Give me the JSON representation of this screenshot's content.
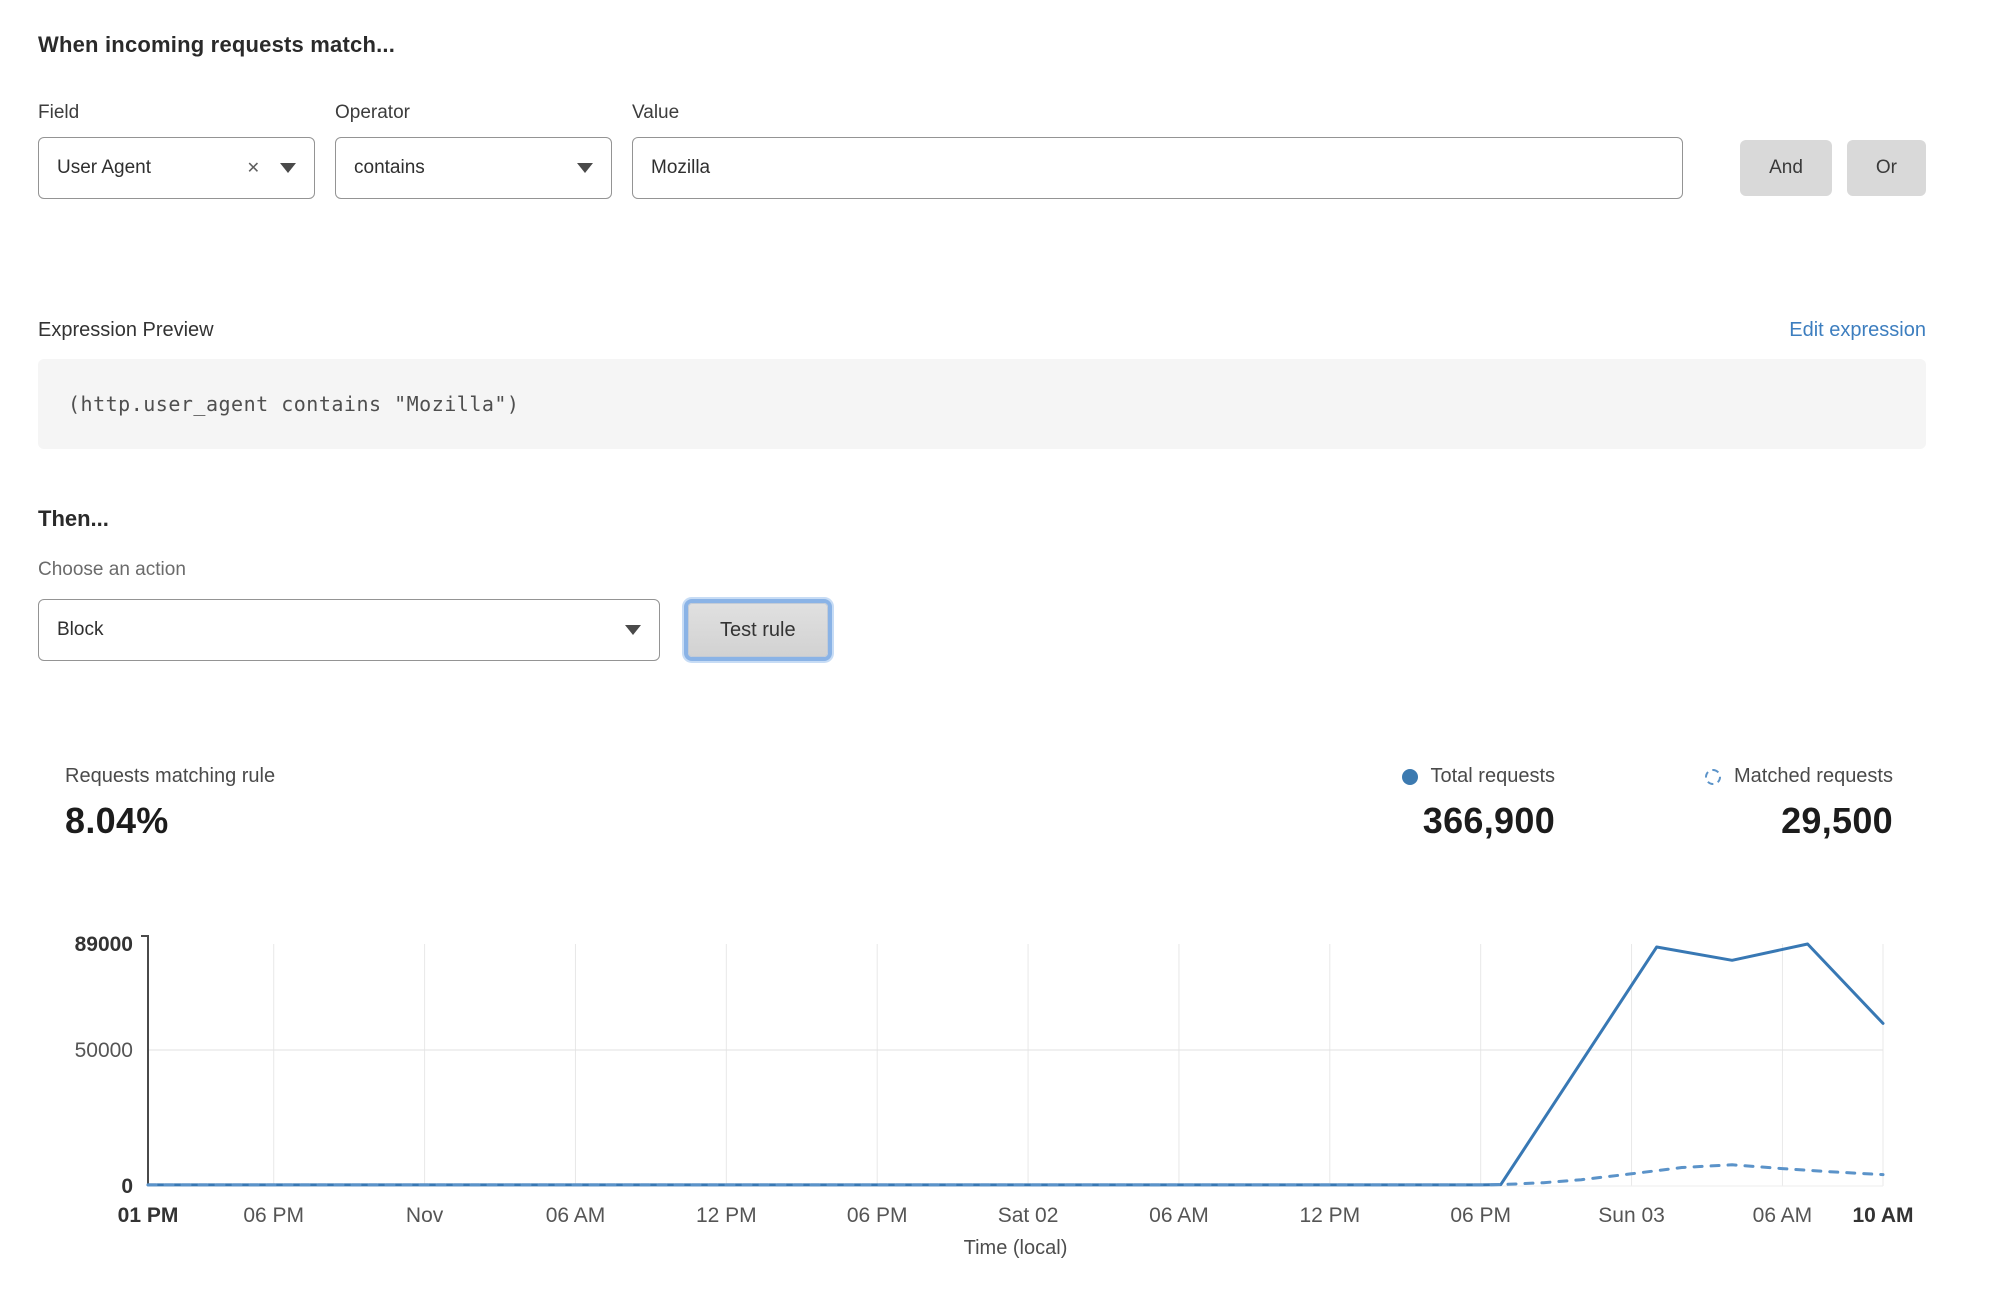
{
  "header": {
    "title": "When incoming requests match..."
  },
  "rule_builder": {
    "field": {
      "label": "Field",
      "value": "User Agent"
    },
    "operator": {
      "label": "Operator",
      "value": "contains"
    },
    "value": {
      "label": "Value",
      "value": "Mozilla"
    },
    "and_label": "And",
    "or_label": "Or"
  },
  "expression": {
    "label": "Expression Preview",
    "edit_link": "Edit expression",
    "code": "(http.user_agent contains \"Mozilla\")"
  },
  "action": {
    "heading": "Then...",
    "label": "Choose an action",
    "value": "Block",
    "test_button": "Test rule"
  },
  "stats": {
    "matching": {
      "label": "Requests matching rule",
      "value": "8.04%"
    },
    "total": {
      "label": "Total requests",
      "value": "366,900"
    },
    "matched": {
      "label": "Matched requests",
      "value": "29,500"
    }
  },
  "colors": {
    "line_solid": "#3878b4",
    "line_dashed": "#5b93c9",
    "link_blue": "#3d7ebf",
    "button_grey": "#d9d9d9"
  },
  "chart_data": {
    "type": "line",
    "title": "",
    "xlabel": "Time (local)",
    "ylabel": "",
    "ylim": [
      0,
      89000
    ],
    "x_range_hours": [
      0,
      69
    ],
    "grid": true,
    "legend_position": "above-right",
    "yticks": [
      {
        "value": 0,
        "label": "0",
        "bold": true
      },
      {
        "value": 50000,
        "label": "50000",
        "bold": false
      },
      {
        "value": 89000,
        "label": "89000",
        "bold": true
      }
    ],
    "xticks": [
      {
        "hour": 0,
        "label": "01 PM",
        "bold": true
      },
      {
        "hour": 5,
        "label": "06 PM",
        "bold": false
      },
      {
        "hour": 11,
        "label": "Nov",
        "bold": false
      },
      {
        "hour": 17,
        "label": "06 AM",
        "bold": false
      },
      {
        "hour": 23,
        "label": "12 PM",
        "bold": false
      },
      {
        "hour": 29,
        "label": "06 PM",
        "bold": false
      },
      {
        "hour": 35,
        "label": "Sat 02",
        "bold": false
      },
      {
        "hour": 41,
        "label": "06 AM",
        "bold": false
      },
      {
        "hour": 47,
        "label": "12 PM",
        "bold": false
      },
      {
        "hour": 53,
        "label": "06 PM",
        "bold": false
      },
      {
        "hour": 59,
        "label": "Sun 03",
        "bold": false
      },
      {
        "hour": 65,
        "label": "06 AM",
        "bold": false
      },
      {
        "hour": 69,
        "label": "10 AM",
        "bold": true
      }
    ],
    "series": [
      {
        "name": "Total requests",
        "style": "solid",
        "color": "#3878b4",
        "points": [
          [
            0,
            400
          ],
          [
            5,
            400
          ],
          [
            11,
            400
          ],
          [
            17,
            400
          ],
          [
            23,
            400
          ],
          [
            29,
            400
          ],
          [
            35,
            400
          ],
          [
            41,
            400
          ],
          [
            47,
            400
          ],
          [
            53,
            400
          ],
          [
            53.8,
            500
          ],
          [
            60,
            87900
          ],
          [
            63,
            83000
          ],
          [
            66,
            89000
          ],
          [
            69,
            59800
          ]
        ]
      },
      {
        "name": "Matched requests",
        "style": "dashed",
        "color": "#5b93c9",
        "points": [
          [
            0,
            400
          ],
          [
            5,
            400
          ],
          [
            11,
            400
          ],
          [
            17,
            400
          ],
          [
            23,
            400
          ],
          [
            29,
            400
          ],
          [
            35,
            400
          ],
          [
            41,
            400
          ],
          [
            47,
            400
          ],
          [
            53,
            400
          ],
          [
            54,
            600
          ],
          [
            55.5,
            1200
          ],
          [
            57,
            2300
          ],
          [
            59,
            4500
          ],
          [
            61,
            6800
          ],
          [
            63,
            7800
          ],
          [
            65,
            6400
          ],
          [
            67,
            5200
          ],
          [
            69,
            4200
          ]
        ]
      }
    ]
  }
}
